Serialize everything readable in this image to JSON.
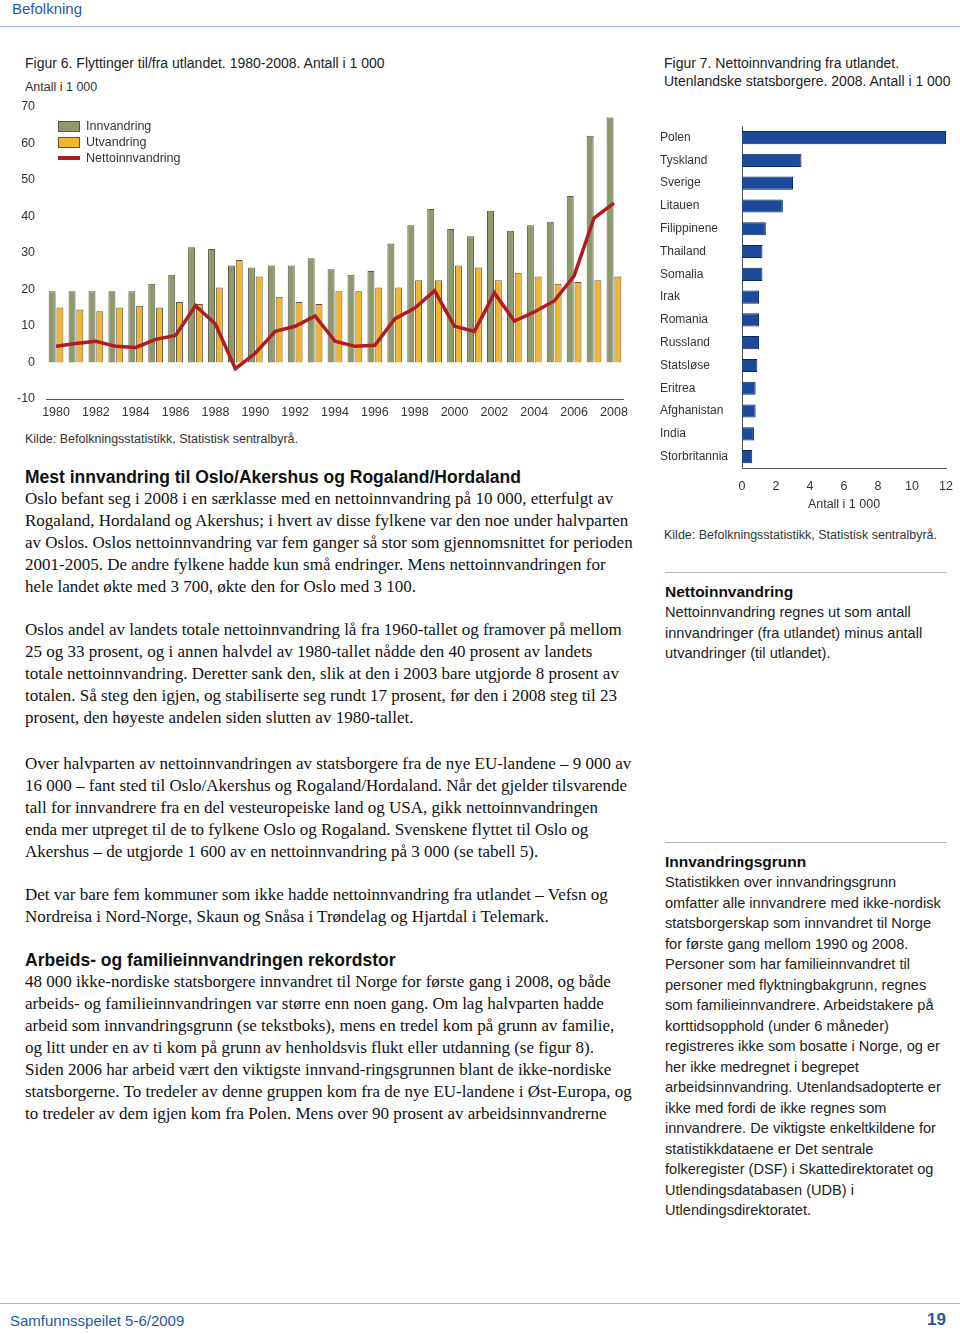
{
  "header": {
    "section": "Befolkning"
  },
  "chart_data": [
    {
      "type": "bar",
      "title": "Figur 6. Flyttinger til/fra utlandet. 1980-2008. Antall i 1 000",
      "y_label": "Antall i 1 000",
      "categories": [
        "1980",
        null,
        "1982",
        null,
        "1984",
        null,
        "1986",
        null,
        "1988",
        null,
        "1990",
        null,
        "1992",
        null,
        "1994",
        null,
        "1996",
        null,
        "1998",
        null,
        "2000",
        null,
        "2002",
        null,
        "2004",
        null,
        "2006",
        null,
        "2008"
      ],
      "series": [
        {
          "name": "Innvandring",
          "color": "#8e9a6c",
          "values": [
            19.5,
            19.5,
            19.5,
            19.5,
            19.5,
            21.5,
            24,
            31.5,
            31,
            26.5,
            26,
            26.5,
            26.5,
            28.5,
            25.5,
            24,
            25,
            32.5,
            37.5,
            42,
            36.5,
            34.5,
            41.5,
            36,
            37.5,
            38.5,
            45.5,
            62,
            67
          ]
        },
        {
          "name": "Utvandring",
          "color": "#f1b52e",
          "values": [
            15,
            14.5,
            14,
            15,
            15.5,
            15,
            16.5,
            16,
            20.5,
            28,
            23.5,
            18,
            16.5,
            16,
            19.5,
            19.5,
            20.5,
            20.5,
            22.5,
            22.5,
            26.5,
            26,
            22.5,
            24.5,
            23.5,
            21.5,
            22,
            22.5,
            23.5
          ]
        },
        {
          "name": "Nettoinnvandring",
          "type": "line",
          "color": "#b01c22",
          "values": [
            4.4,
            5.2,
            5.8,
            4.4,
            4.1,
            6.3,
            7.4,
            15.5,
            10.5,
            -1.7,
            2.5,
            8.5,
            9.9,
            12.7,
            5.8,
            4.4,
            4.7,
            11.9,
            14.9,
            19.6,
            9.9,
            8.5,
            19,
            11.3,
            13.8,
            16.8,
            23.7,
            39.5,
            43.6
          ]
        }
      ],
      "ylim": [
        -10,
        70
      ],
      "yticks": [
        -10,
        0,
        10,
        20,
        30,
        40,
        50,
        60,
        70
      ],
      "grid": false,
      "legend": "top left",
      "source": "Kilde: Befolkningsstatistikk, Statistisk sentralbyrå."
    },
    {
      "type": "bar",
      "orientation": "horizontal",
      "title": "Figur 7. Nettoinnvandring fra utlandet. Utenlandske statsborgere. 2008. Antall i 1 000",
      "x_label": "Antall i 1 000",
      "categories": [
        "Polen",
        "Tyskland",
        "Sverige",
        "Litauen",
        "Filippinene",
        "Thailand",
        "Somalia",
        "Irak",
        "Romania",
        "Russland",
        "Statsløse",
        "Eritrea",
        "Afghanistan",
        "India",
        "Storbritannia"
      ],
      "values": [
        12,
        3.5,
        3,
        2.4,
        1.4,
        1.2,
        1.2,
        1,
        1,
        1,
        0.9,
        0.8,
        0.8,
        0.7,
        0.6
      ],
      "color": "#1c4a9a",
      "xlim": [
        0,
        12
      ],
      "xticks": [
        0,
        2,
        4,
        6,
        8,
        10,
        12
      ],
      "grid": false,
      "source": "Kilde: Befolkningsstatistikk, Statistisk sentralbyrå."
    }
  ],
  "text": {
    "sections": [
      {
        "heading": "Mest innvandring til Oslo/Akershus og Rogaland/Hordaland",
        "paragraphs": [
          "Oslo befant seg i 2008 i en særklasse med en nettoinnvandring på 10 000, etterfulgt av Rogaland, Hordaland og Akershus; i hvert av disse fylkene var den noe under halvparten av Oslos. Oslos nettoinnvandring var fem ganger så stor som gjennomsnittet for perioden 2001-2005. De andre fylkene hadde kun små endringer. Mens nettoinnvandringen for hele landet økte med 3 700, økte den for Oslo med 3 100.",
          "Oslos andel av landets totale nettoinnvandring lå fra 1960-tallet og framover på mellom 25 og 33 prosent, og i annen halvdel av 1980-tallet nådde den 40 prosent av landets totale nettoinnvandring. Deretter sank den, slik at den i 2003 bare utgjorde 8 prosent av totalen. Så steg den igjen, og stabiliserte seg rundt 17 prosent, før den i 2008 steg til 23 prosent, den høyeste andelen siden slutten av 1980-tallet.",
          "Over halvparten av nettoinnvandringen av statsborgere fra de nye EU-landene – 9 000 av 16 000 – fant sted til Oslo/Akershus og Rogaland/Hordaland. Når det gjelder tilsvarende tall for innvandrere fra en del vesteuropeiske land og USA, gikk nettoinnvandringen enda mer utpreget til de to fylkene Oslo og Rogaland. Svenskene flyttet til Oslo og Akershus – de utgjorde 1 600 av en nettoinnvandring på 3 000 (se tabell 5).",
          "Det var bare fem kommuner som ikke hadde nettoinnvandring fra utlandet – Vefsn og Nordreisa i Nord-Norge, Skaun og Snåsa i Trøndelag og Hjartdal i Telemark."
        ]
      },
      {
        "heading": "Arbeids- og familieinnvandringen rekordstor",
        "paragraphs": [
          "48 000 ikke-nordiske statsborgere innvandret til Norge for første gang i 2008, og både arbeids- og familieinnvandringen var større enn noen gang. Om lag halvparten hadde arbeid som innvandringsgrunn (se tekstboks), mens en tredel kom på grunn av familie, og litt under en av ti kom på grunn av henholdsvis flukt eller utdanning (se figur 8). Siden 2006 har arbeid vært den viktigste innvand-ringsgrunnen blant de ikke-nordiske statsborgerne. To tredeler av denne gruppen kom fra de nye EU-landene i Øst-Europa, og to tredeler av dem igjen kom fra Polen. Mens over 90 prosent av arbeidsinnvandrerne"
        ]
      }
    ],
    "sidebars": [
      {
        "heading": "Nettoinnvandring",
        "text": "Nettoinnvandring regnes ut som antall innvandringer (fra utlandet) minus antall utvandringer (til utlandet)."
      },
      {
        "heading": "Innvandringsgrunn",
        "text": "Statistikken over innvandringsgrunn omfatter alle innvandrere med ikke-nordisk statsborgerskap som innvandret til Norge for første gang mellom 1990 og 2008. Personer som har familieinnvandret til personer med flyktningbakgrunn, regnes som familieinnvandrere. Arbeidstakere på korttidsopphold (under 6 måneder) registreres ikke som bosatte i Norge, og er her ikke medregnet i begrepet arbeidsinnvandring. Utenlandsadopterte er ikke med fordi de ikke regnes som innvandrere. De viktigste enkeltkildene for statistikkdataene er Det sentrale folkeregister (DSF) i Skattedirektoratet og Utlendingsdatabasen (UDB) i Utlendingsdirektoratet."
      }
    ]
  },
  "footer": {
    "publication": "Samfunnsspeilet 5-6/2009",
    "page": "19"
  }
}
